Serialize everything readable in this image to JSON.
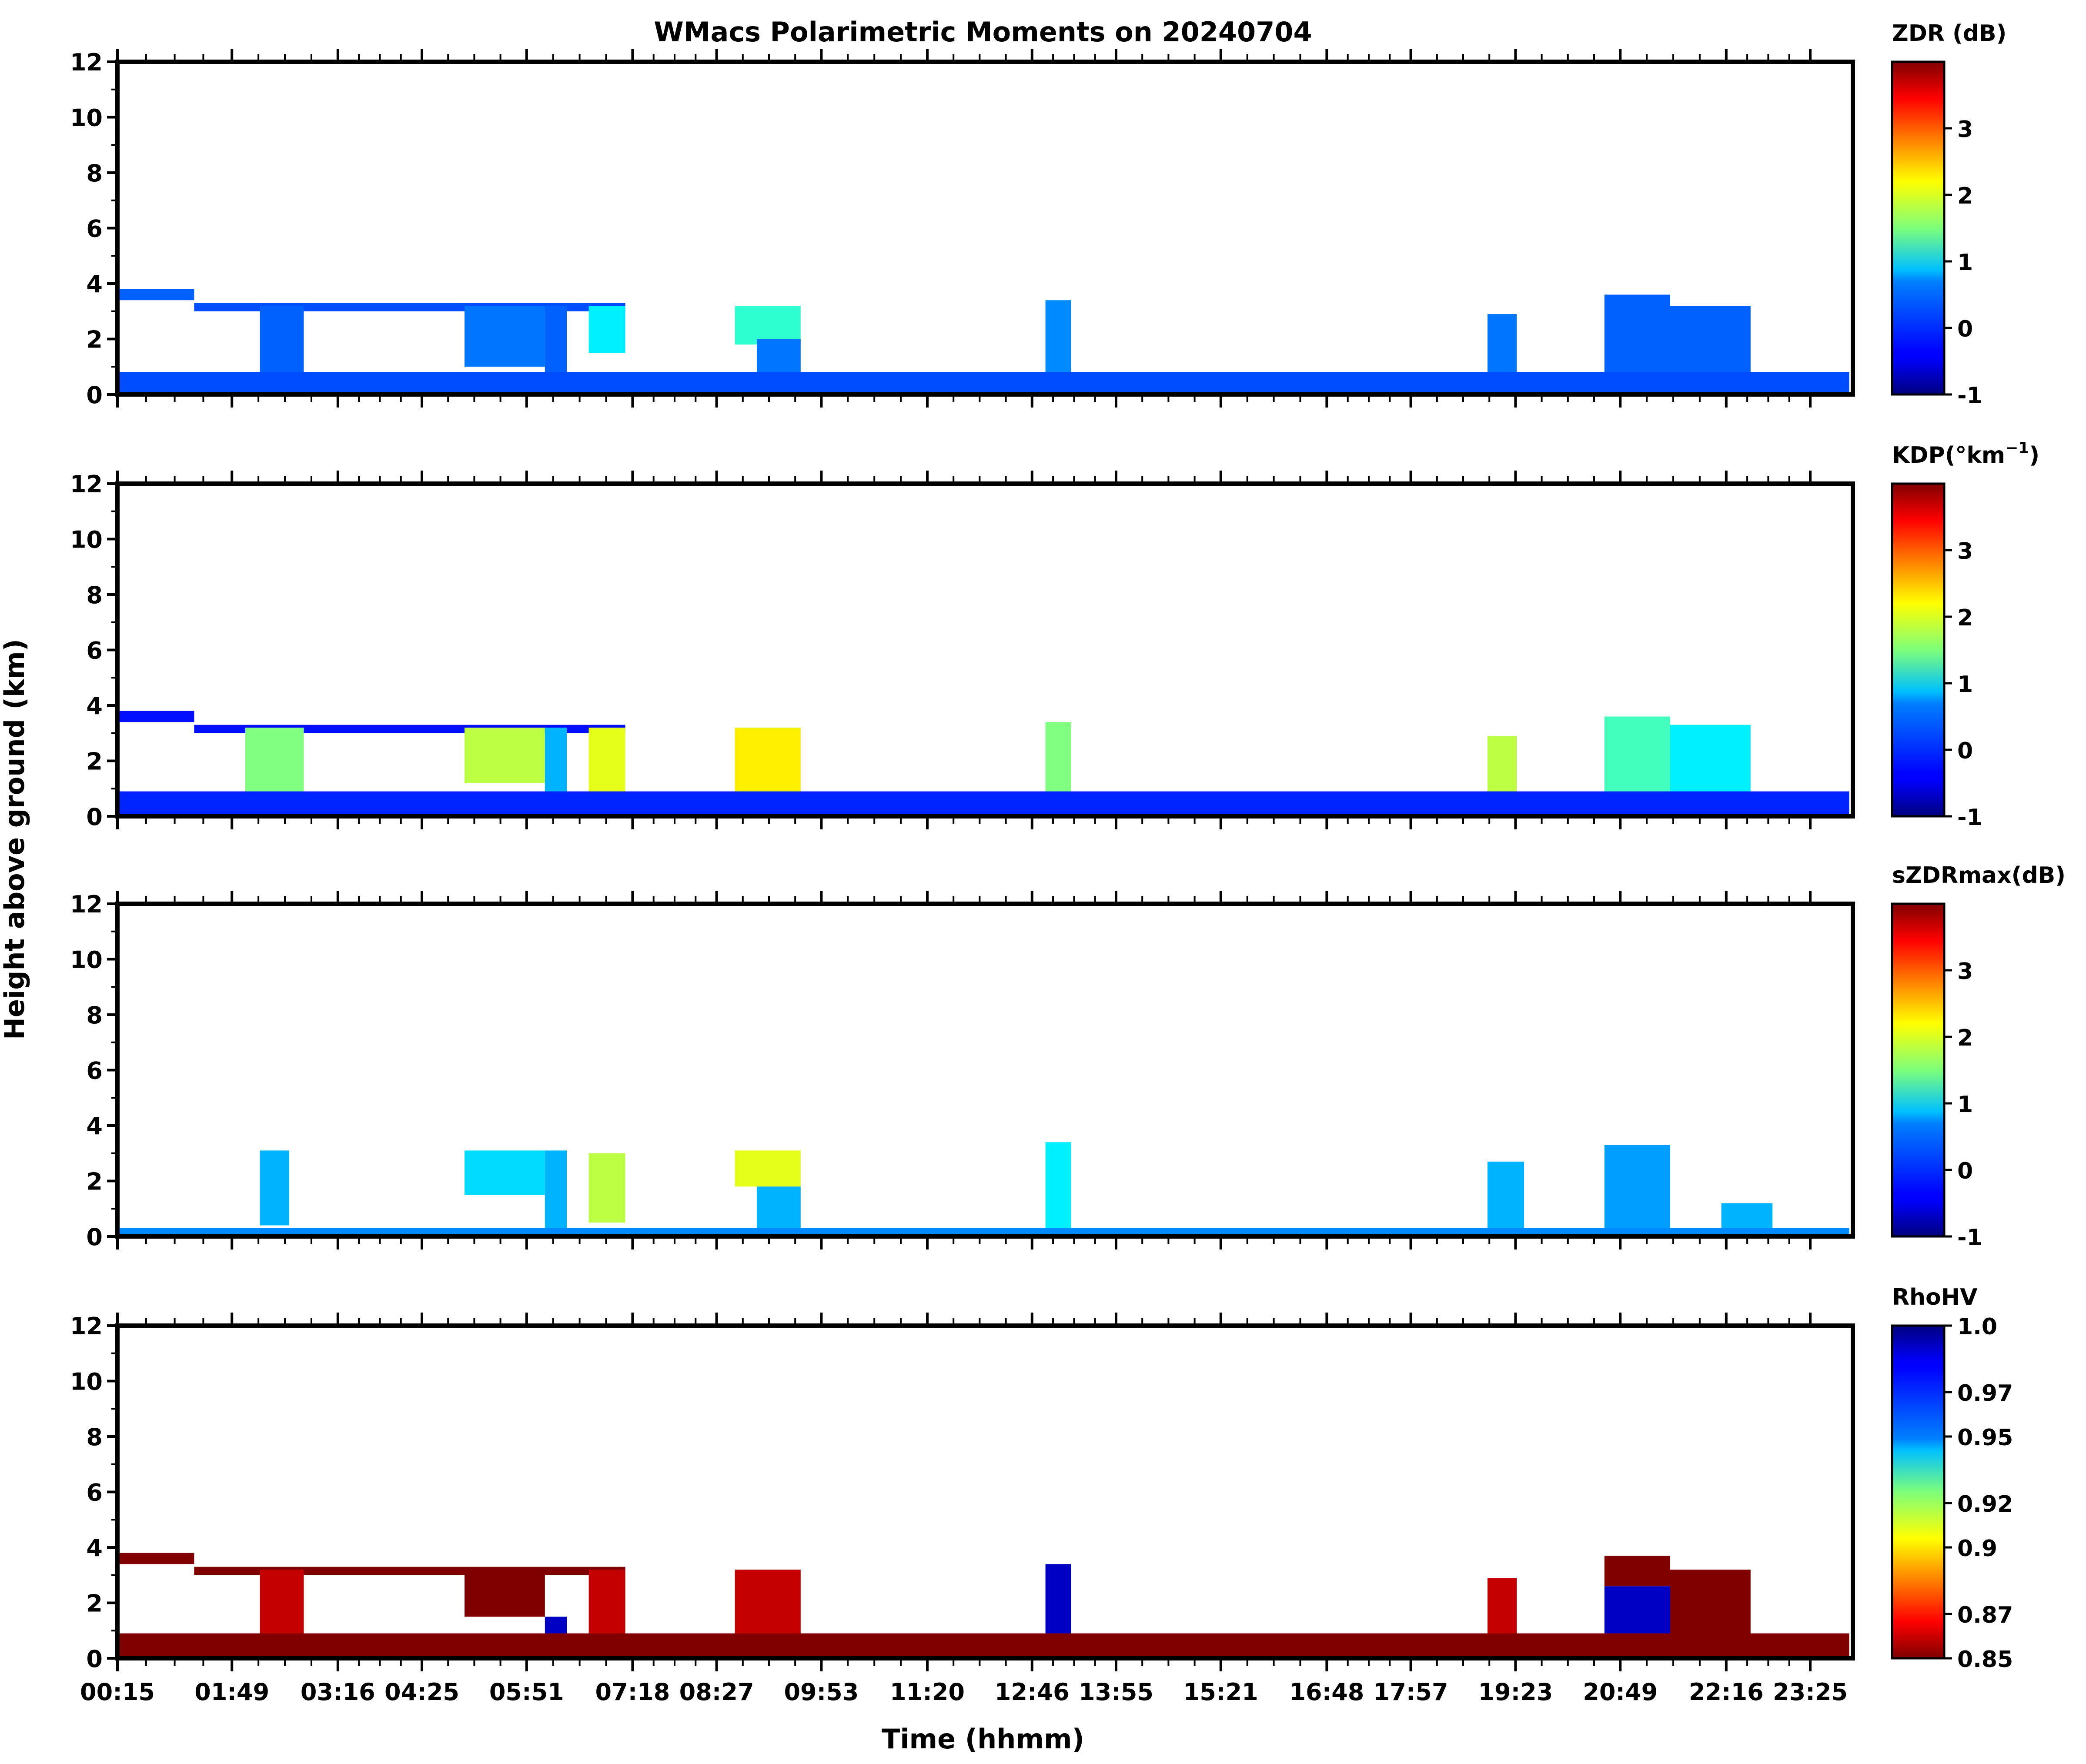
{
  "title": "WMacs Polarimetric Moments on 20240704",
  "ylabel": "Height above ground (km)",
  "xlabel": "Time (hhmm)",
  "chart_data": [
    {
      "type": "heatmap",
      "panel": "ZDR",
      "colorbar_label": "ZDR (dB)",
      "colormap": "jet",
      "clim": [
        -1,
        4
      ],
      "colorbar_ticks": [
        "-1",
        "0",
        "1",
        "2",
        "3"
      ],
      "colorbar_tick_values": [
        -1,
        0,
        1,
        2,
        3
      ],
      "yticks": [
        "0",
        "2",
        "4",
        "6",
        "8",
        "10",
        "12"
      ],
      "ylim": [
        0,
        12
      ],
      "echoes": [
        {
          "t0": 0.25,
          "t1": 1.3,
          "h0": 3.4,
          "h1": 3.8,
          "v": 0.1
        },
        {
          "t0": 1.3,
          "t1": 7.2,
          "h0": 3.0,
          "h1": 3.3,
          "v": 0.0
        },
        {
          "t0": 2.2,
          "t1": 2.8,
          "h0": 0.3,
          "h1": 3.2,
          "v": 0.1
        },
        {
          "t0": 5.0,
          "t1": 6.1,
          "h0": 1.0,
          "h1": 3.2,
          "v": 0.2
        },
        {
          "t0": 6.1,
          "t1": 6.4,
          "h0": 0.0,
          "h1": 3.2,
          "v": 0.1
        },
        {
          "t0": 6.7,
          "t1": 7.2,
          "h0": 1.5,
          "h1": 3.2,
          "v": 0.8
        },
        {
          "t0": 8.7,
          "t1": 9.6,
          "h0": 1.8,
          "h1": 3.2,
          "v": 1.1
        },
        {
          "t0": 9.0,
          "t1": 9.6,
          "h0": 0.0,
          "h1": 2.0,
          "v": 0.2
        },
        {
          "t0": 12.95,
          "t1": 13.3,
          "h0": 0.0,
          "h1": 3.4,
          "v": 0.3
        },
        {
          "t0": 19.0,
          "t1": 19.4,
          "h0": 0.3,
          "h1": 2.9,
          "v": 0.2
        },
        {
          "t0": 20.6,
          "t1": 21.5,
          "h0": 0.0,
          "h1": 3.6,
          "v": 0.1
        },
        {
          "t0": 21.5,
          "t1": 22.6,
          "h0": 0.5,
          "h1": 3.2,
          "v": 0.1
        },
        {
          "t0": 0.25,
          "t1": 23.95,
          "h0": 0.0,
          "h1": 0.8,
          "v": 0.0
        }
      ]
    },
    {
      "type": "heatmap",
      "panel": "KDP",
      "colorbar_label": "KDP(°km",
      "colorbar_label_sup": "−1",
      "colorbar_label_end": ")",
      "colormap": "jet",
      "clim": [
        -1,
        4
      ],
      "colorbar_ticks": [
        "-1",
        "0",
        "1",
        "2",
        "3"
      ],
      "colorbar_tick_values": [
        -1,
        0,
        1,
        2,
        3
      ],
      "yticks": [
        "0",
        "2",
        "4",
        "6",
        "8",
        "10",
        "12"
      ],
      "ylim": [
        0,
        12
      ],
      "echoes": [
        {
          "t0": 0.25,
          "t1": 1.3,
          "h0": 3.4,
          "h1": 3.8,
          "v": -0.3
        },
        {
          "t0": 1.3,
          "t1": 7.2,
          "h0": 3.0,
          "h1": 3.3,
          "v": -0.3
        },
        {
          "t0": 2.0,
          "t1": 2.8,
          "h0": 0.3,
          "h1": 3.2,
          "v": 1.5
        },
        {
          "t0": 5.0,
          "t1": 6.1,
          "h0": 1.2,
          "h1": 3.2,
          "v": 1.8
        },
        {
          "t0": 6.1,
          "t1": 6.4,
          "h0": 0.0,
          "h1": 3.2,
          "v": 0.5
        },
        {
          "t0": 6.7,
          "t1": 7.2,
          "h0": 0.6,
          "h1": 3.2,
          "v": 2.0
        },
        {
          "t0": 8.7,
          "t1": 9.6,
          "h0": 0.3,
          "h1": 3.2,
          "v": 2.2
        },
        {
          "t0": 12.95,
          "t1": 13.3,
          "h0": 0.0,
          "h1": 3.4,
          "v": 1.5
        },
        {
          "t0": 19.0,
          "t1": 19.4,
          "h0": 0.3,
          "h1": 2.9,
          "v": 1.8
        },
        {
          "t0": 20.6,
          "t1": 21.5,
          "h0": 0.0,
          "h1": 3.6,
          "v": 1.2
        },
        {
          "t0": 21.5,
          "t1": 22.6,
          "h0": 0.3,
          "h1": 3.3,
          "v": 0.8
        },
        {
          "t0": 0.25,
          "t1": 23.95,
          "h0": 0.0,
          "h1": 0.9,
          "v": -0.2
        }
      ]
    },
    {
      "type": "heatmap",
      "panel": "sZDRmax",
      "colorbar_label": "sZDRmax(dB)",
      "colormap": "jet",
      "clim": [
        -1,
        4
      ],
      "colorbar_ticks": [
        "-1",
        "0",
        "1",
        "2",
        "3"
      ],
      "colorbar_tick_values": [
        -1,
        0,
        1,
        2,
        3
      ],
      "yticks": [
        "0",
        "2",
        "4",
        "6",
        "8",
        "10",
        "12"
      ],
      "ylim": [
        0,
        12
      ],
      "echoes": [
        {
          "t0": 2.2,
          "t1": 2.6,
          "h0": 0.4,
          "h1": 3.1,
          "v": 0.5
        },
        {
          "t0": 5.0,
          "t1": 6.1,
          "h0": 1.5,
          "h1": 3.1,
          "v": 0.7
        },
        {
          "t0": 6.1,
          "t1": 6.4,
          "h0": 0.0,
          "h1": 3.1,
          "v": 0.5
        },
        {
          "t0": 6.7,
          "t1": 7.2,
          "h0": 0.5,
          "h1": 3.0,
          "v": 1.8
        },
        {
          "t0": 8.7,
          "t1": 9.6,
          "h0": 1.8,
          "h1": 3.1,
          "v": 2.0
        },
        {
          "t0": 9.0,
          "t1": 9.6,
          "h0": 0.0,
          "h1": 1.8,
          "v": 0.5
        },
        {
          "t0": 12.95,
          "t1": 13.3,
          "h0": 0.0,
          "h1": 3.4,
          "v": 0.8
        },
        {
          "t0": 19.0,
          "t1": 19.5,
          "h0": 0.2,
          "h1": 2.7,
          "v": 0.5
        },
        {
          "t0": 20.6,
          "t1": 21.5,
          "h0": 0.0,
          "h1": 3.3,
          "v": 0.4
        },
        {
          "t0": 22.2,
          "t1": 22.9,
          "h0": 0.0,
          "h1": 1.2,
          "v": 0.5
        },
        {
          "t0": 0.25,
          "t1": 23.95,
          "h0": 0.0,
          "h1": 0.3,
          "v": 0.3
        }
      ]
    },
    {
      "type": "heatmap",
      "panel": "RhoHV",
      "colorbar_label": "RhoHV",
      "colormap": "jet_r",
      "clim": [
        0.85,
        1.0
      ],
      "colorbar_ticks": [
        "0.85",
        "0.87",
        "0.9",
        "0.92",
        "0.95",
        "0.97",
        "1.0"
      ],
      "colorbar_tick_values": [
        0.85,
        0.87,
        0.9,
        0.92,
        0.95,
        0.97,
        1.0
      ],
      "yticks": [
        "0",
        "2",
        "4",
        "6",
        "8",
        "10",
        "12"
      ],
      "ylim": [
        0,
        12
      ],
      "echoes": [
        {
          "t0": 0.25,
          "t1": 1.3,
          "h0": 3.4,
          "h1": 3.8,
          "v": 0.85
        },
        {
          "t0": 1.3,
          "t1": 7.2,
          "h0": 3.0,
          "h1": 3.3,
          "v": 0.85
        },
        {
          "t0": 2.2,
          "t1": 2.8,
          "h0": 0.3,
          "h1": 3.2,
          "v": 0.86
        },
        {
          "t0": 5.0,
          "t1": 6.1,
          "h0": 1.5,
          "h1": 3.2,
          "v": 0.85
        },
        {
          "t0": 6.1,
          "t1": 6.4,
          "h0": 0.0,
          "h1": 1.5,
          "v": 0.99
        },
        {
          "t0": 6.7,
          "t1": 7.2,
          "h0": 0.8,
          "h1": 3.2,
          "v": 0.86
        },
        {
          "t0": 8.7,
          "t1": 9.6,
          "h0": 0.3,
          "h1": 3.2,
          "v": 0.86
        },
        {
          "t0": 12.95,
          "t1": 13.3,
          "h0": 0.0,
          "h1": 3.4,
          "v": 0.99
        },
        {
          "t0": 19.0,
          "t1": 19.4,
          "h0": 0.3,
          "h1": 2.9,
          "v": 0.86
        },
        {
          "t0": 20.6,
          "t1": 21.5,
          "h0": 0.0,
          "h1": 2.6,
          "v": 0.99
        },
        {
          "t0": 20.6,
          "t1": 21.5,
          "h0": 2.6,
          "h1": 3.7,
          "v": 0.85
        },
        {
          "t0": 21.5,
          "t1": 22.6,
          "h0": 0.3,
          "h1": 3.2,
          "v": 0.85
        },
        {
          "t0": 0.25,
          "t1": 23.95,
          "h0": 0.0,
          "h1": 0.9,
          "v": 0.85
        }
      ]
    }
  ],
  "xaxis": {
    "xlim": [
      0.25,
      24.0
    ],
    "ticks": [
      "00:15",
      "01:49",
      "03:16",
      "04:25",
      "05:51",
      "07:18",
      "08:27",
      "09:53",
      "11:20",
      "12:46",
      "13:55",
      "15:21",
      "16:48",
      "17:57",
      "19:23",
      "20:49",
      "22:16",
      "23:25"
    ],
    "tick_hours": [
      0.25,
      1.8167,
      3.2667,
      4.4167,
      5.85,
      7.3,
      8.45,
      9.8833,
      11.3333,
      12.7667,
      13.9167,
      15.35,
      16.8,
      17.95,
      19.3833,
      20.8167,
      22.2667,
      23.4167
    ]
  }
}
